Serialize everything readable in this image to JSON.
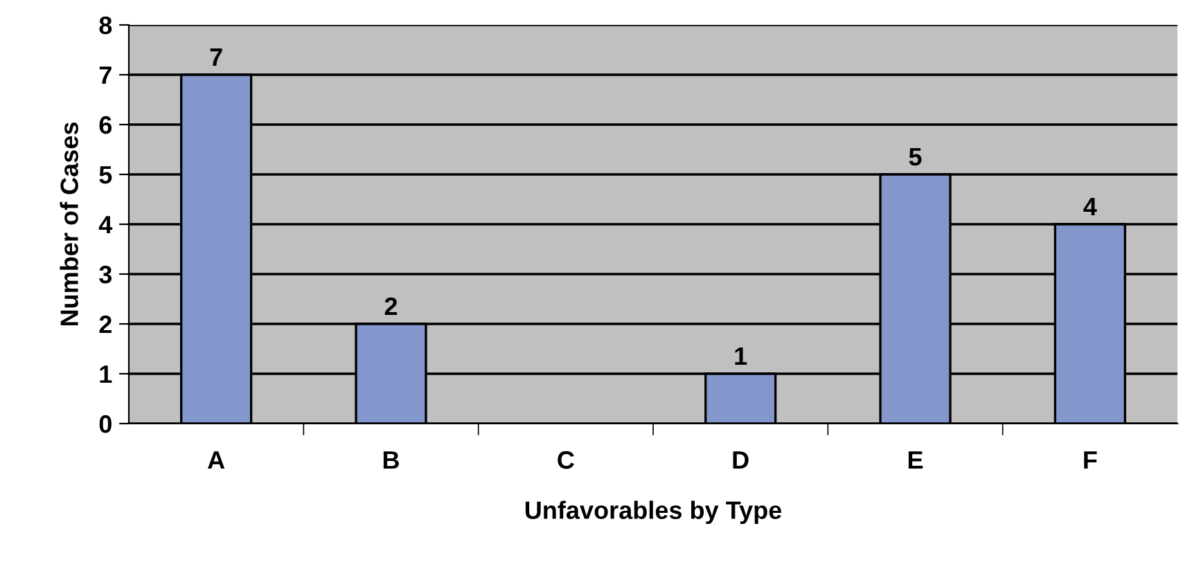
{
  "chart_data": {
    "type": "bar",
    "xlabel": "Unfavorables by Type",
    "ylabel": "Number of Cases",
    "categories": [
      "A",
      "B",
      "C",
      "D",
      "E",
      "F"
    ],
    "values": [
      7,
      2,
      0,
      1,
      5,
      4
    ],
    "value_labels": [
      "7",
      "2",
      null,
      "1",
      "5",
      "4"
    ],
    "color": "#8497cc",
    "ylim": [
      0,
      8
    ],
    "yticks": [
      0,
      1,
      2,
      3,
      4,
      5,
      6,
      7,
      8
    ],
    "grid": "y",
    "legend": false
  }
}
